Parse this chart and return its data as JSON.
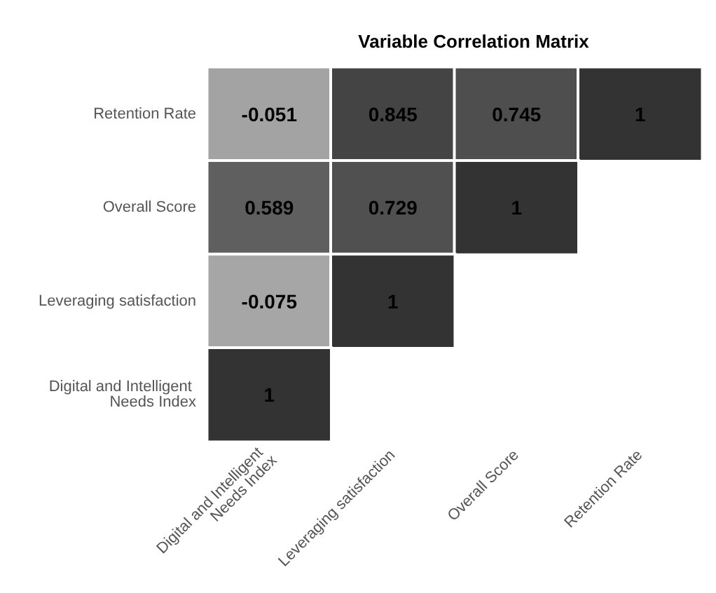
{
  "chart_data": {
    "type": "heatmap",
    "title": "Variable Correlation Matrix",
    "categories": [
      "Digital and Intelligent Needs Index",
      "Leveraging satisfaction",
      "Overall Score",
      "Retention Rate"
    ],
    "y_categories": [
      "Retention Rate",
      "Overall Score",
      "Leveraging satisfaction",
      "Digital and Intelligent Needs Index"
    ],
    "cells": [
      [
        -0.051,
        0.845,
        0.745,
        1
      ],
      [
        0.589,
        0.729,
        1,
        null
      ],
      [
        -0.075,
        1,
        null,
        null
      ],
      [
        1,
        null,
        null,
        null
      ]
    ],
    "data_labels": true
  }
}
